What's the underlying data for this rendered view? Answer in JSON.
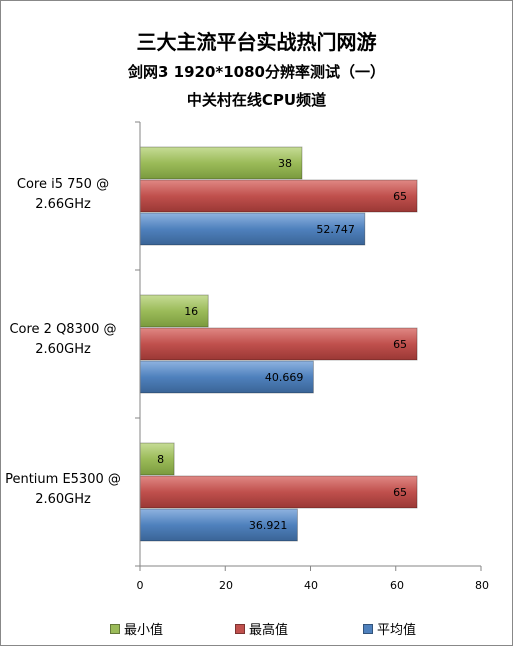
{
  "chart_data": {
    "type": "bar",
    "orientation": "horizontal",
    "title": "三大主流平台实战热门网游",
    "subtitle": "剑网3 1920*1080分辨率测试（一）",
    "subtitle2": "中关村在线CPU频道",
    "categories": [
      [
        "Core i5 750  @",
        "2.66GHz"
      ],
      [
        "Core 2 Q8300  @",
        "2.60GHz"
      ],
      [
        "Pentium E5300  @",
        "2.60GHz"
      ]
    ],
    "series": [
      {
        "name": "最小值",
        "color": "#9bbb59",
        "values": [
          38,
          16,
          8
        ],
        "labels": [
          "38",
          "16",
          "8"
        ]
      },
      {
        "name": "最高值",
        "color": "#c0504d",
        "values": [
          65,
          65,
          65
        ],
        "labels": [
          "65",
          "65",
          "65"
        ]
      },
      {
        "name": "平均值",
        "color": "#4f81bd",
        "values": [
          52.747,
          40.669,
          36.921
        ],
        "labels": [
          "52.747",
          "40.669",
          "36.921"
        ]
      }
    ],
    "xlim": [
      0,
      80
    ],
    "xticks": [
      "0",
      "20",
      "40",
      "60",
      "80"
    ],
    "grid": false,
    "legend": "bottom"
  }
}
